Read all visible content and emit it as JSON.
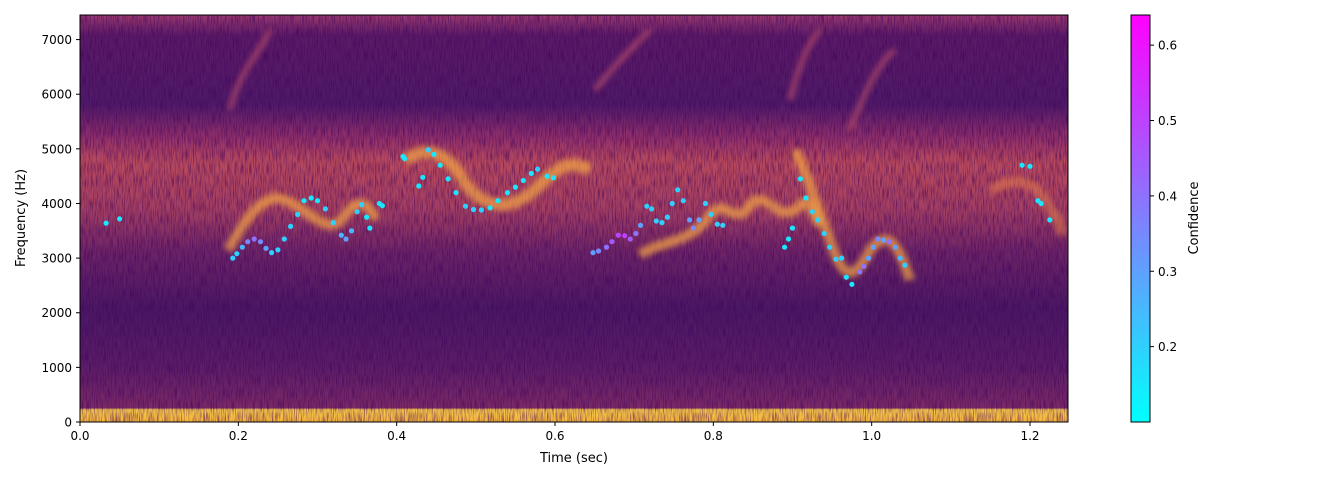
{
  "chart_data": {
    "type": "scatter",
    "title": "",
    "xlabel": "Time (sec)",
    "ylabel": "Frequency (Hz)",
    "xlim": [
      0.0,
      1.248
    ],
    "ylim": [
      0,
      7450
    ],
    "xticks": [
      0.0,
      0.2,
      0.4,
      0.6,
      0.8,
      1.0,
      1.2
    ],
    "xtick_labels": [
      "0.0",
      "0.2",
      "0.4",
      "0.6",
      "0.8",
      "1.0",
      "1.2"
    ],
    "yticks": [
      0,
      1000,
      2000,
      3000,
      4000,
      5000,
      6000,
      7000
    ],
    "ytick_labels": [
      "0",
      "1000",
      "2000",
      "3000",
      "4000",
      "5000",
      "6000",
      "7000"
    ],
    "background": "spectrogram (magma-like colormap: dark purple to orange/yellow)",
    "grid": false,
    "colorbar": {
      "label": "Confidence",
      "range": [
        0.1,
        0.64
      ],
      "ticks": [
        0.2,
        0.3,
        0.4,
        0.5,
        0.6
      ],
      "tick_labels": [
        "0.2",
        "0.3",
        "0.4",
        "0.5",
        "0.6"
      ],
      "colormap": "cool",
      "color_low": "#00ffff",
      "color_high": "#ff00ff"
    },
    "series": [
      {
        "points": [
          [
            0.033,
            3640,
            0.15
          ],
          [
            0.05,
            3720,
            0.15
          ],
          [
            0.193,
            3000,
            0.2
          ],
          [
            0.198,
            3080,
            0.2
          ],
          [
            0.205,
            3200,
            0.25
          ],
          [
            0.212,
            3300,
            0.35
          ],
          [
            0.22,
            3350,
            0.4
          ],
          [
            0.228,
            3300,
            0.35
          ],
          [
            0.235,
            3180,
            0.3
          ],
          [
            0.242,
            3100,
            0.2
          ],
          [
            0.25,
            3150,
            0.2
          ],
          [
            0.258,
            3350,
            0.2
          ],
          [
            0.266,
            3580,
            0.2
          ],
          [
            0.275,
            3800,
            0.2
          ],
          [
            0.283,
            4050,
            0.15
          ],
          [
            0.292,
            4100,
            0.15
          ],
          [
            0.3,
            4050,
            0.15
          ],
          [
            0.31,
            3900,
            0.2
          ],
          [
            0.32,
            3650,
            0.2
          ],
          [
            0.33,
            3420,
            0.25
          ],
          [
            0.336,
            3350,
            0.3
          ],
          [
            0.343,
            3500,
            0.25
          ],
          [
            0.35,
            3850,
            0.2
          ],
          [
            0.356,
            3980,
            0.2
          ],
          [
            0.362,
            3750,
            0.15
          ],
          [
            0.366,
            3550,
            0.15
          ],
          [
            0.378,
            4000,
            0.15
          ],
          [
            0.382,
            3960,
            0.15
          ],
          [
            0.408,
            4860,
            0.15
          ],
          [
            0.41,
            4820,
            0.15
          ],
          [
            0.428,
            4320,
            0.15
          ],
          [
            0.433,
            4480,
            0.15
          ],
          [
            0.44,
            4980,
            0.2
          ],
          [
            0.447,
            4900,
            0.15
          ],
          [
            0.455,
            4700,
            0.15
          ],
          [
            0.465,
            4450,
            0.15
          ],
          [
            0.475,
            4200,
            0.15
          ],
          [
            0.487,
            3950,
            0.2
          ],
          [
            0.497,
            3890,
            0.2
          ],
          [
            0.507,
            3880,
            0.2
          ],
          [
            0.518,
            3920,
            0.15
          ],
          [
            0.528,
            4050,
            0.15
          ],
          [
            0.54,
            4200,
            0.15
          ],
          [
            0.55,
            4300,
            0.15
          ],
          [
            0.56,
            4420,
            0.15
          ],
          [
            0.57,
            4550,
            0.15
          ],
          [
            0.578,
            4630,
            0.2
          ],
          [
            0.59,
            4500,
            0.15
          ],
          [
            0.598,
            4470,
            0.15
          ],
          [
            0.648,
            3100,
            0.3
          ],
          [
            0.655,
            3130,
            0.35
          ],
          [
            0.665,
            3200,
            0.4
          ],
          [
            0.672,
            3300,
            0.45
          ],
          [
            0.68,
            3420,
            0.5
          ],
          [
            0.688,
            3410,
            0.5
          ],
          [
            0.695,
            3350,
            0.45
          ],
          [
            0.702,
            3450,
            0.4
          ],
          [
            0.708,
            3600,
            0.3
          ],
          [
            0.716,
            3950,
            0.2
          ],
          [
            0.722,
            3900,
            0.2
          ],
          [
            0.728,
            3680,
            0.2
          ],
          [
            0.735,
            3650,
            0.2
          ],
          [
            0.742,
            3750,
            0.2
          ],
          [
            0.748,
            4000,
            0.2
          ],
          [
            0.755,
            4250,
            0.2
          ],
          [
            0.762,
            4050,
            0.2
          ],
          [
            0.77,
            3700,
            0.3
          ],
          [
            0.775,
            3550,
            0.35
          ],
          [
            0.782,
            3700,
            0.3
          ],
          [
            0.79,
            4000,
            0.2
          ],
          [
            0.797,
            3800,
            0.2
          ],
          [
            0.805,
            3620,
            0.2
          ],
          [
            0.812,
            3600,
            0.2
          ],
          [
            0.89,
            3200,
            0.15
          ],
          [
            0.895,
            3350,
            0.15
          ],
          [
            0.9,
            3550,
            0.15
          ],
          [
            0.91,
            4450,
            0.15
          ],
          [
            0.917,
            4100,
            0.15
          ],
          [
            0.925,
            3850,
            0.2
          ],
          [
            0.932,
            3700,
            0.2
          ],
          [
            0.94,
            3450,
            0.2
          ],
          [
            0.947,
            3200,
            0.2
          ],
          [
            0.955,
            2980,
            0.2
          ],
          [
            0.962,
            3000,
            0.2
          ],
          [
            0.968,
            2650,
            0.15
          ],
          [
            0.975,
            2520,
            0.15
          ],
          [
            0.985,
            2750,
            0.4
          ],
          [
            0.99,
            2850,
            0.4
          ],
          [
            0.996,
            3000,
            0.3
          ],
          [
            1.002,
            3200,
            0.3
          ],
          [
            1.008,
            3350,
            0.35
          ],
          [
            1.015,
            3330,
            0.3
          ],
          [
            1.022,
            3300,
            0.4
          ],
          [
            1.03,
            3200,
            0.3
          ],
          [
            1.036,
            3000,
            0.25
          ],
          [
            1.042,
            2870,
            0.2
          ],
          [
            1.19,
            4700,
            0.15
          ],
          [
            1.2,
            4680,
            0.15
          ],
          [
            1.21,
            4050,
            0.15
          ],
          [
            1.214,
            4000,
            0.15
          ],
          [
            1.225,
            3700,
            0.15
          ]
        ]
      }
    ]
  }
}
